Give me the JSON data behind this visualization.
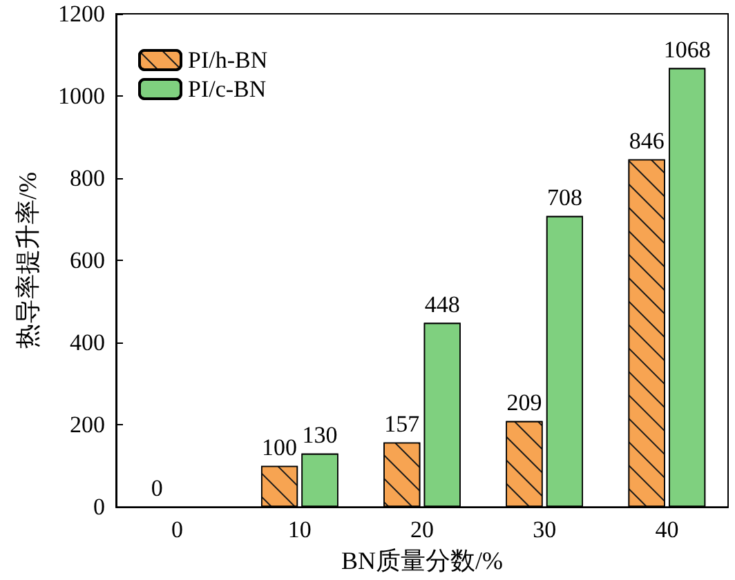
{
  "chart_data": {
    "type": "bar",
    "xlabel": "BN质量分数/%",
    "ylabel": "热导率提升率/%",
    "categories": [
      "0",
      "10",
      "20",
      "30",
      "40"
    ],
    "series": [
      {
        "name": "PI/h-BN",
        "color": "#f7a452",
        "values": [
          0,
          100,
          157,
          209,
          846
        ]
      },
      {
        "name": "PI/c-BN",
        "color": "#7fd07f",
        "values": [
          null,
          130,
          448,
          708,
          1068
        ]
      }
    ],
    "ylim": [
      0,
      1200
    ],
    "yticks": [
      0,
      200,
      400,
      600,
      800,
      1000,
      1200
    ],
    "data_labels": true,
    "legend": "top left",
    "grid": false
  }
}
